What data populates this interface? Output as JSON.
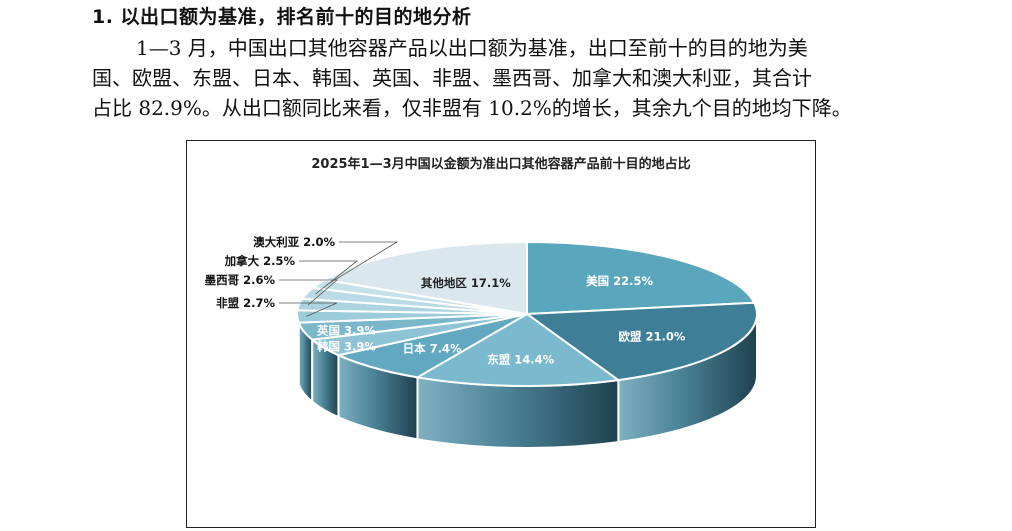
{
  "document": {
    "heading": "1. 以出口额为基准，排名前十的目的地分析",
    "paragraph_lines": [
      "1—3 月，中国出口其他容器产品以出口额为基准，出口至前十的目的地为美",
      "国、欧盟、东盟、日本、韩国、英国、非盟、墨西哥、加拿大和澳大利亚，其合计",
      "占比 82.9%。从出口额同比来看，仅非盟有 10.2%的增长，其余九个目的地均下降。"
    ]
  },
  "chart_data": {
    "type": "pie",
    "title": "2025年1—3月中国以金额为准出口其他容器产品前十目的地占比",
    "slices": [
      {
        "name": "美国",
        "value": 22.5,
        "label": "美国 22.5%",
        "color": "#5aa6bd"
      },
      {
        "name": "欧盟",
        "value": 21.0,
        "label": "欧盟 21.0%",
        "color": "#3e7f97"
      },
      {
        "name": "东盟",
        "value": 14.4,
        "label": "东盟 14.4%",
        "color": "#7bbace"
      },
      {
        "name": "日本",
        "value": 7.4,
        "label": "日本 7.4%",
        "color": "#61a8c0"
      },
      {
        "name": "韩国",
        "value": 3.9,
        "label": "韩国 3.9%",
        "color": "#8dc3d4"
      },
      {
        "name": "英国",
        "value": 3.9,
        "label": "英国 3.9%",
        "color": "#7ab7cb"
      },
      {
        "name": "非盟",
        "value": 2.7,
        "label": "非盟 2.7%",
        "color": "#9ccbd9"
      },
      {
        "name": "墨西哥",
        "value": 2.6,
        "label": "墨西哥 2.6%",
        "color": "#acd4e0"
      },
      {
        "name": "加拿大",
        "value": 2.5,
        "label": "加拿大 2.5%",
        "color": "#badbe5"
      },
      {
        "name": "澳大利亚",
        "value": 2.0,
        "label": "澳大利亚 2.0%",
        "color": "#c6e1e9"
      },
      {
        "name": "其他地区",
        "value": 17.1,
        "label": "其他地区 17.1%",
        "color": "#dae8ee"
      }
    ]
  }
}
